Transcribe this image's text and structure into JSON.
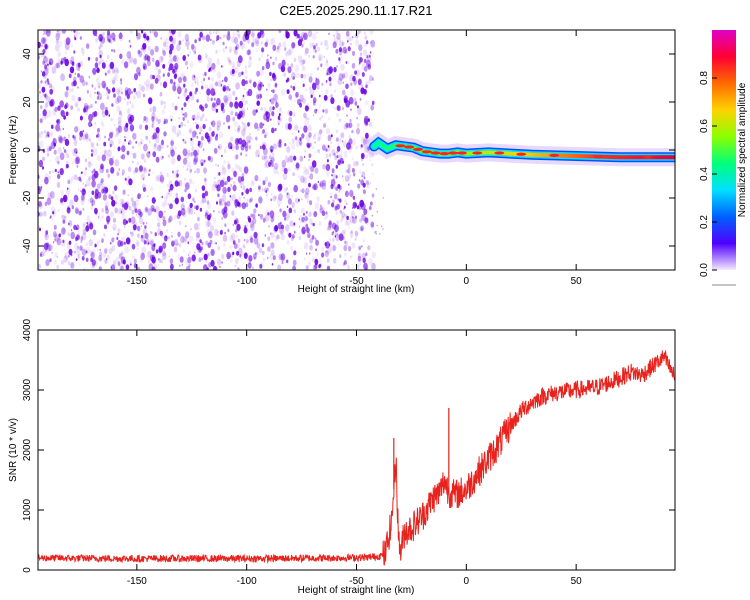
{
  "figure_title": "C2E5.2025.290.11.17.R21",
  "colors": {
    "spectrum_dots": "#6a00e0",
    "snr_line": "#e8231d",
    "colorbar_stops": [
      "#e000c8",
      "#ff0033",
      "#ff6a00",
      "#ffd200",
      "#8cff00",
      "#00ff7a",
      "#00e0ff",
      "#0060ff",
      "#5000ff",
      "#f4e8ff"
    ]
  },
  "chart_data": [
    {
      "type": "heatmap",
      "title": "C2E5.2025.290.11.17.R21",
      "xlabel": "Height of straight line (km)",
      "ylabel": "Frequency (Hz)",
      "xlim": [
        -195,
        95
      ],
      "ylim": [
        -50,
        50
      ],
      "x_ticks": [
        -150,
        -100,
        -50,
        0,
        50
      ],
      "y_ticks": [
        -40,
        -20,
        0,
        20,
        40
      ],
      "noise_region_x": [
        -195,
        -42
      ],
      "signal_ridge": {
        "x": [
          -42,
          -40,
          -36,
          -32,
          -28,
          -24,
          -20,
          -16,
          -12,
          -8,
          -4,
          0,
          10,
          20,
          30,
          50,
          70,
          95
        ],
        "freq_hz": [
          1.5,
          3.0,
          0.5,
          2.0,
          1.5,
          1.0,
          -0.5,
          -1.0,
          -1.5,
          -1.5,
          -1.0,
          -1.5,
          -1.0,
          -1.5,
          -2.0,
          -2.5,
          -3.0,
          -3.0
        ]
      },
      "colorbar": {
        "label": "Normalized spectral amplitude",
        "range": [
          0.0,
          1.0
        ],
        "ticks": [
          "0.0",
          "0.2",
          "0.4",
          "0.6",
          "0.8"
        ]
      }
    },
    {
      "type": "line",
      "xlabel": "Height of straight line (km)",
      "ylabel": "SNR (10 * v/v)",
      "xlim": [
        -195,
        95
      ],
      "ylim": [
        0,
        4000
      ],
      "x_ticks": [
        -150,
        -100,
        -50,
        0,
        50
      ],
      "y_ticks": [
        0,
        1000,
        2000,
        3000,
        4000
      ],
      "series": [
        {
          "name": "SNR",
          "x": [
            -195,
            -150,
            -100,
            -60,
            -45,
            -40,
            -37,
            -34,
            -32,
            -31,
            -30,
            -28,
            -25,
            -20,
            -15,
            -12,
            -10,
            -8,
            -5,
            0,
            5,
            10,
            15,
            20,
            25,
            30,
            35,
            40,
            50,
            60,
            70,
            75,
            80,
            85,
            90,
            95
          ],
          "values": [
            200,
            190,
            190,
            200,
            210,
            230,
            260,
            800,
            1900,
            600,
            300,
            650,
            700,
            900,
            1200,
            1300,
            1500,
            1300,
            1250,
            1350,
            1600,
            1850,
            2100,
            2400,
            2650,
            2800,
            2900,
            2950,
            3000,
            3050,
            3200,
            3300,
            3250,
            3400,
            3550,
            3200
          ]
        }
      ],
      "annotations": [
        {
          "x": -33,
          "value": 2200,
          "text": ""
        },
        {
          "x": -8,
          "value": 2700,
          "text": ""
        }
      ]
    }
  ]
}
